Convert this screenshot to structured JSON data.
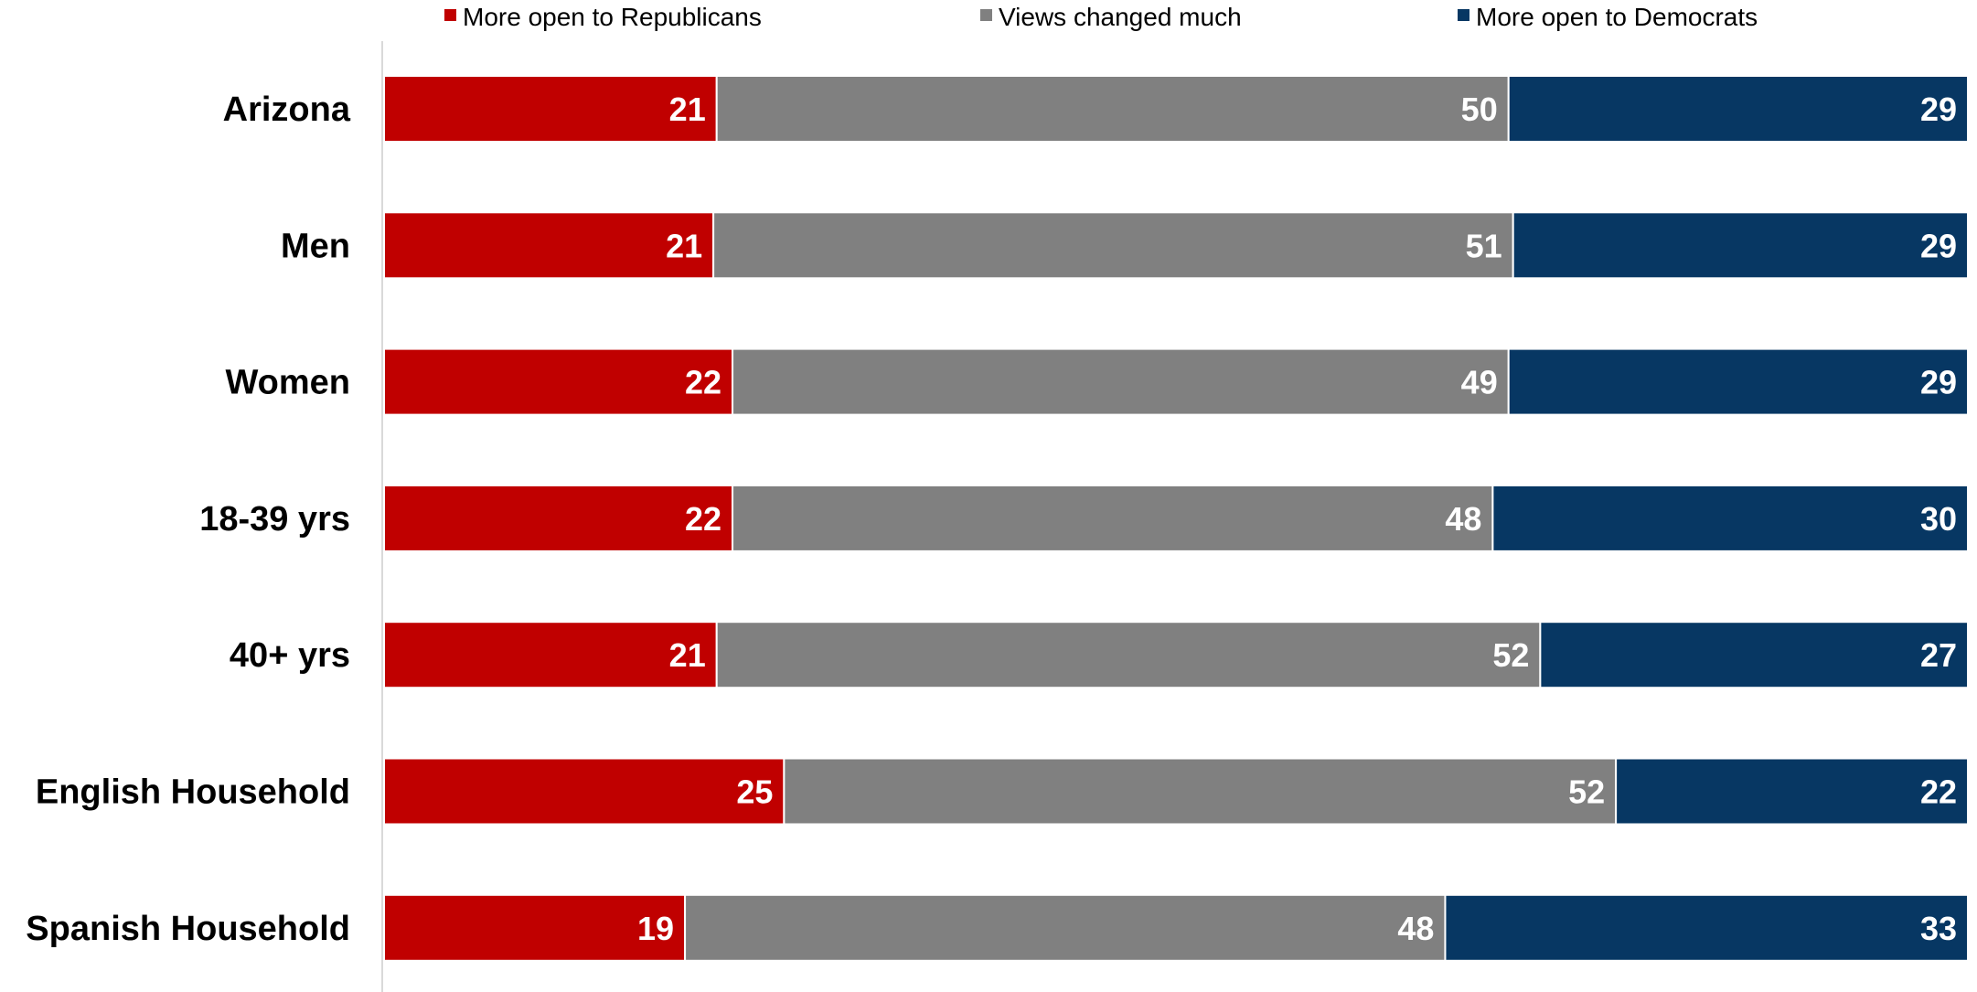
{
  "chart_data": {
    "type": "bar",
    "orientation": "horizontal",
    "stacked": true,
    "normalized": true,
    "categories": [
      "Arizona",
      "Men",
      "Women",
      "18-39 yrs",
      "40+ yrs",
      "English Household",
      "Spanish Household"
    ],
    "series": [
      {
        "name": "More open to Republicans",
        "color": "#C00000",
        "values": [
          21,
          21,
          22,
          22,
          21,
          25,
          19
        ]
      },
      {
        "name": "Views changed much",
        "color": "#808080",
        "values": [
          50,
          51,
          49,
          48,
          52,
          52,
          48
        ]
      },
      {
        "name": "More open to Democrats",
        "color": "#073763",
        "values": [
          29,
          29,
          29,
          30,
          27,
          22,
          33
        ]
      }
    ],
    "legend_position": "top",
    "grid": false,
    "title": "",
    "xlabel": "",
    "ylabel": ""
  }
}
